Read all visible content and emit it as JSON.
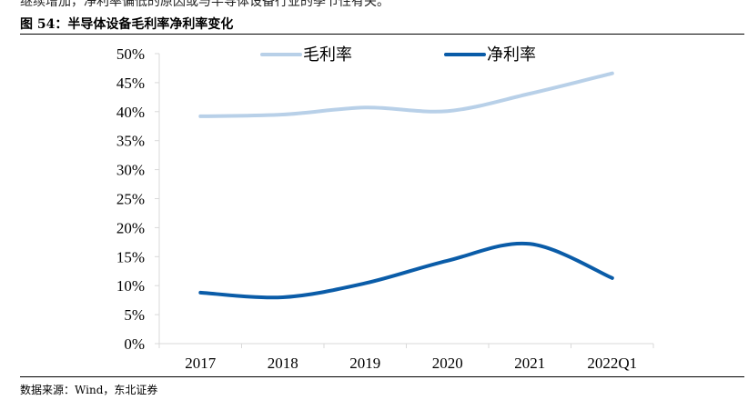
{
  "header": {
    "context_text": "继续增加，净利率偏低的原因或与半导体设备行业的季节性有关。",
    "figure_title": "图 54：半导体设备毛利率净利率变化"
  },
  "footer": {
    "source": "数据来源：Wind，东北证券"
  },
  "chart_data": {
    "type": "line",
    "title": "",
    "xlabel": "",
    "ylabel": "",
    "categories": [
      "2017",
      "2018",
      "2019",
      "2020",
      "2021",
      "2022Q1"
    ],
    "y_ticks": [
      "0%",
      "5%",
      "10%",
      "15%",
      "20%",
      "25%",
      "30%",
      "35%",
      "40%",
      "45%",
      "50%"
    ],
    "ylim": [
      0,
      50
    ],
    "grid": false,
    "legend_position": "top",
    "series": [
      {
        "name": "毛利率",
        "values": [
          39.2,
          39.5,
          40.7,
          40.1,
          43.1,
          46.6
        ],
        "color": "#b8d0e8"
      },
      {
        "name": "净利率",
        "values": [
          8.8,
          8.0,
          10.4,
          14.3,
          17.2,
          11.3
        ],
        "color": "#0a5ca8"
      }
    ]
  }
}
